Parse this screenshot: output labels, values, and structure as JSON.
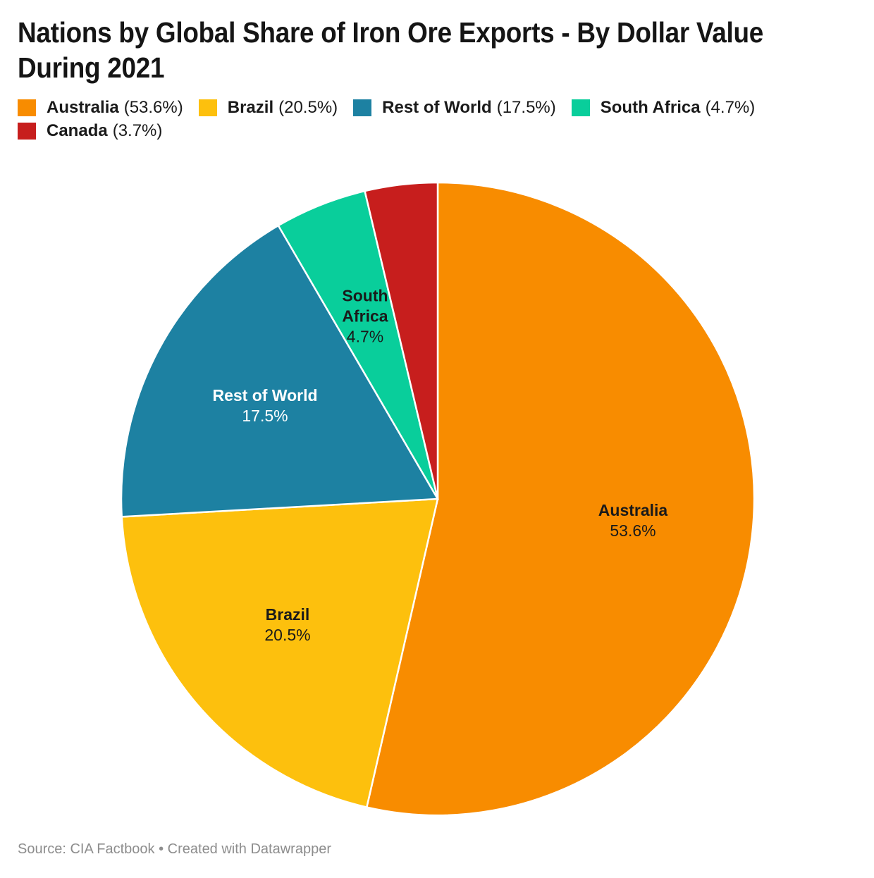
{
  "title": {
    "line1": "Nations by Global Share of Iron Ore Exports - By Dollar Value",
    "line2": "During 2021",
    "full": "Nations by Global Share of Iron Ore Exports - By Dollar Value During 2021"
  },
  "legend": {
    "items": [
      {
        "name": "Australia",
        "pct_text": "(53.6%)",
        "color": "#F88C00"
      },
      {
        "name": "Brazil",
        "pct_text": "(20.5%)",
        "color": "#FDC00D"
      },
      {
        "name": "Rest of World",
        "pct_text": "(17.5%)",
        "color": "#1D81A2"
      },
      {
        "name": "South Africa",
        "pct_text": "(4.7%)",
        "color": "#09CE9B"
      },
      {
        "name": "Canada",
        "pct_text": "(3.7%)",
        "color": "#C71E1D"
      }
    ]
  },
  "chart_data": {
    "type": "pie",
    "title": "Nations by Global Share of Iron Ore Exports - By Dollar Value During 2021",
    "start_angle_deg": 0,
    "direction": "clockwise",
    "legend_position": "top",
    "slices": [
      {
        "label": "Australia",
        "label_lines": [
          "Australia"
        ],
        "value": 53.6,
        "display": "53.6%",
        "color": "#F88C00",
        "label_color": "#1a1a1a",
        "inside_label": true
      },
      {
        "label": "Brazil",
        "label_lines": [
          "Brazil"
        ],
        "value": 20.5,
        "display": "20.5%",
        "color": "#FDC00D",
        "label_color": "#1a1a1a",
        "inside_label": true
      },
      {
        "label": "Rest of World",
        "label_lines": [
          "Rest of World"
        ],
        "value": 17.5,
        "display": "17.5%",
        "color": "#1D81A2",
        "label_color": "#ffffff",
        "inside_label": true
      },
      {
        "label": "South Africa",
        "label_lines": [
          "South",
          "Africa"
        ],
        "value": 4.7,
        "display": "4.7%",
        "color": "#09CE9B",
        "label_color": "#1a1a1a",
        "inside_label": true
      },
      {
        "label": "Canada",
        "label_lines": [
          "Canada"
        ],
        "value": 3.7,
        "display": "3.7%",
        "color": "#C71E1D",
        "label_color": "#1a1a1a",
        "inside_label": false
      }
    ]
  },
  "footer": {
    "text": "Source: CIA Factbook • Created with Datawrapper"
  }
}
